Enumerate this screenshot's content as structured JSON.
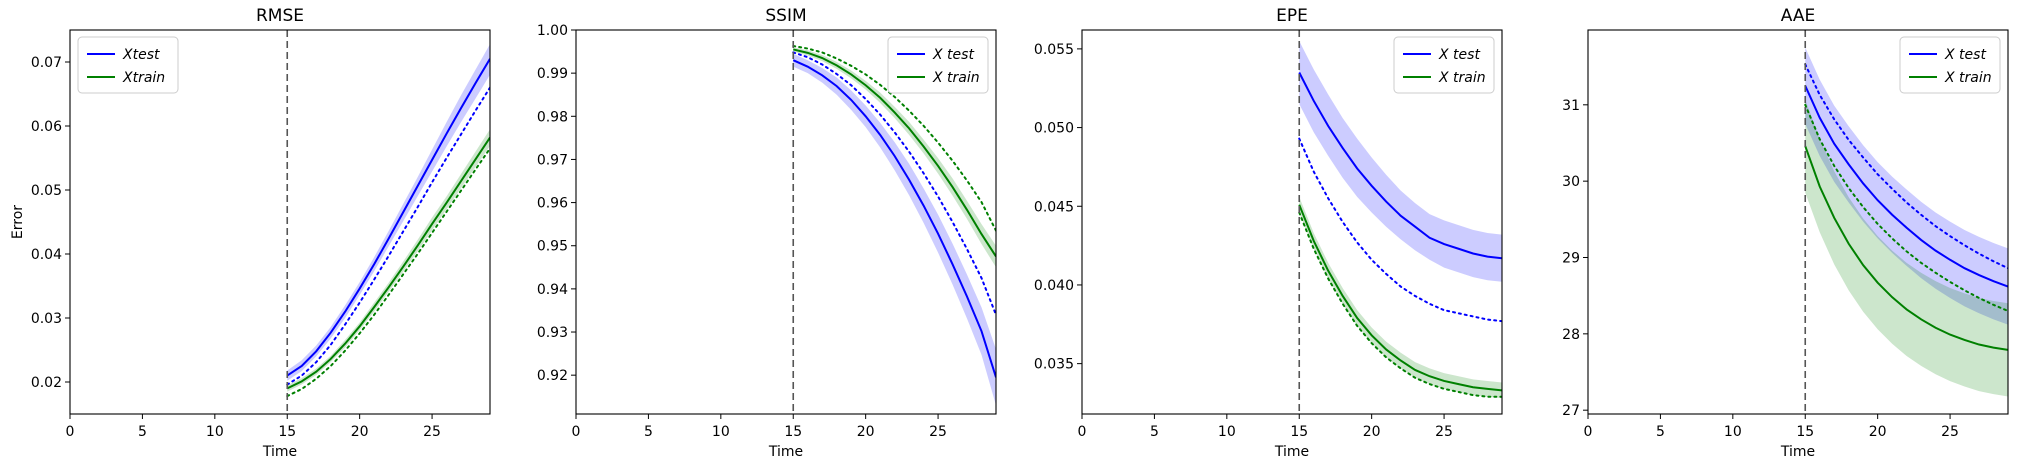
{
  "chart_data": [
    {
      "type": "line",
      "title": "RMSE",
      "xlabel": "Time",
      "ylabel": "Error",
      "xlim": [
        0,
        29
      ],
      "ylim": [
        0.015,
        0.075
      ],
      "xticks": [
        0,
        5,
        10,
        15,
        20,
        25
      ],
      "yticks": [
        0.02,
        0.03,
        0.04,
        0.05,
        0.06,
        0.07
      ],
      "ytick_labels": [
        "0.02",
        "0.03",
        "0.04",
        "0.05",
        "0.06",
        "0.07"
      ],
      "vline_x": 15,
      "legend": {
        "position": "top-left",
        "entries": [
          {
            "label": "Xtest",
            "color": "#0000ff"
          },
          {
            "label": "Xtrain",
            "color": "#008000"
          }
        ]
      },
      "x": [
        15,
        16,
        17,
        18,
        19,
        20,
        21,
        22,
        23,
        24,
        25,
        26,
        27,
        28,
        29
      ],
      "series": [
        {
          "name": "Xtest",
          "color": "#0000ff",
          "mean": [
            0.021,
            0.0225,
            0.0248,
            0.0277,
            0.031,
            0.0346,
            0.0384,
            0.0424,
            0.0465,
            0.0506,
            0.0547,
            0.0588,
            0.0628,
            0.0667,
            0.0705
          ],
          "lower": [
            0.0202,
            0.0217,
            0.024,
            0.0268,
            0.03,
            0.0336,
            0.0373,
            0.0412,
            0.0451,
            0.049,
            0.0529,
            0.0568,
            0.0606,
            0.0643,
            0.068
          ],
          "upper": [
            0.0218,
            0.0234,
            0.0257,
            0.0286,
            0.032,
            0.0356,
            0.0395,
            0.0436,
            0.0478,
            0.052,
            0.0563,
            0.0606,
            0.0648,
            0.0688,
            0.0728
          ],
          "dotted": [
            0.0196,
            0.021,
            0.0231,
            0.0258,
            0.029,
            0.0324,
            0.036,
            0.0397,
            0.0435,
            0.0473,
            0.0512,
            0.055,
            0.0587,
            0.0624,
            0.066
          ]
        },
        {
          "name": "Xtrain",
          "color": "#008000",
          "mean": [
            0.019,
            0.0201,
            0.0216,
            0.0236,
            0.026,
            0.0287,
            0.0317,
            0.0348,
            0.038,
            0.0413,
            0.0447,
            0.048,
            0.0514,
            0.0548,
            0.0582
          ],
          "lower": [
            0.0185,
            0.0196,
            0.0211,
            0.0231,
            0.0254,
            0.0281,
            0.031,
            0.0341,
            0.0372,
            0.0404,
            0.0437,
            0.047,
            0.0503,
            0.0536,
            0.0569
          ],
          "upper": [
            0.0195,
            0.0206,
            0.0221,
            0.0241,
            0.0266,
            0.0293,
            0.0324,
            0.0355,
            0.0388,
            0.0422,
            0.0457,
            0.049,
            0.0525,
            0.056,
            0.0595
          ],
          "dotted": [
            0.0178,
            0.0189,
            0.0205,
            0.0225,
            0.0249,
            0.0276,
            0.0305,
            0.0336,
            0.0368,
            0.04,
            0.0433,
            0.0466,
            0.0499,
            0.0532,
            0.0565
          ]
        }
      ]
    },
    {
      "type": "line",
      "title": "SSIM",
      "xlabel": "Time",
      "ylabel": "",
      "xlim": [
        0,
        29
      ],
      "ylim": [
        0.911,
        1.0
      ],
      "xticks": [
        0,
        5,
        10,
        15,
        20,
        25
      ],
      "yticks": [
        0.92,
        0.93,
        0.94,
        0.95,
        0.96,
        0.97,
        0.98,
        0.99,
        1.0
      ],
      "ytick_labels": [
        "0.92",
        "0.93",
        "0.94",
        "0.95",
        "0.96",
        "0.97",
        "0.98",
        "0.99",
        "1.00"
      ],
      "vline_x": 15,
      "legend": {
        "position": "top-right",
        "entries": [
          {
            "label": "X test",
            "color": "#0000ff"
          },
          {
            "label": "X train",
            "color": "#008000"
          }
        ]
      },
      "x": [
        15,
        16,
        17,
        18,
        19,
        20,
        21,
        22,
        23,
        24,
        25,
        26,
        27,
        28,
        29
      ],
      "series": [
        {
          "name": "X test",
          "color": "#0000ff",
          "mean": [
            0.993,
            0.9915,
            0.9895,
            0.987,
            0.9838,
            0.98,
            0.9757,
            0.9708,
            0.9653,
            0.9593,
            0.9528,
            0.9457,
            0.9382,
            0.9302,
            0.9195
          ],
          "lower": [
            0.9915,
            0.99,
            0.9878,
            0.985,
            0.9815,
            0.9775,
            0.9728,
            0.9675,
            0.9617,
            0.9553,
            0.9484,
            0.941,
            0.9331,
            0.9247,
            0.913
          ],
          "upper": [
            0.9945,
            0.993,
            0.9912,
            0.989,
            0.986,
            0.9825,
            0.9785,
            0.974,
            0.969,
            0.9633,
            0.9572,
            0.9505,
            0.9433,
            0.9357,
            0.926
          ],
          "dotted": [
            0.9948,
            0.9937,
            0.992,
            0.9898,
            0.9872,
            0.984,
            0.9804,
            0.9763,
            0.9718,
            0.9668,
            0.9614,
            0.9555,
            0.9492,
            0.9425,
            0.934
          ]
        },
        {
          "name": "X train",
          "color": "#008000",
          "mean": [
            0.9955,
            0.9947,
            0.9935,
            0.9918,
            0.9897,
            0.9872,
            0.9843,
            0.9809,
            0.9772,
            0.973,
            0.9685,
            0.9636,
            0.9583,
            0.9527,
            0.9475
          ],
          "lower": [
            0.995,
            0.9941,
            0.9928,
            0.991,
            0.9888,
            0.9862,
            0.9831,
            0.9796,
            0.9757,
            0.9714,
            0.9667,
            0.9616,
            0.9562,
            0.9504,
            0.945
          ],
          "upper": [
            0.996,
            0.9953,
            0.9942,
            0.9926,
            0.9906,
            0.9882,
            0.9855,
            0.9822,
            0.9787,
            0.9746,
            0.9703,
            0.9656,
            0.9604,
            0.955,
            0.95
          ],
          "dotted": [
            0.9963,
            0.9957,
            0.9948,
            0.9934,
            0.9917,
            0.9897,
            0.9873,
            0.9845,
            0.9813,
            0.9778,
            0.9739,
            0.9697,
            0.9651,
            0.9601,
            0.9535
          ]
        }
      ]
    },
    {
      "type": "line",
      "title": "EPE",
      "xlabel": "Time",
      "ylabel": "",
      "xlim": [
        0,
        29
      ],
      "ylim": [
        0.0318,
        0.0562
      ],
      "xticks": [
        0,
        5,
        10,
        15,
        20,
        25
      ],
      "yticks": [
        0.035,
        0.04,
        0.045,
        0.05,
        0.055
      ],
      "ytick_labels": [
        "0.035",
        "0.040",
        "0.045",
        "0.050",
        "0.055"
      ],
      "vline_x": 15,
      "legend": {
        "position": "top-right",
        "entries": [
          {
            "label": "X test",
            "color": "#0000ff"
          },
          {
            "label": "X train",
            "color": "#008000"
          }
        ]
      },
      "x": [
        15,
        16,
        17,
        18,
        19,
        20,
        21,
        22,
        23,
        24,
        25,
        26,
        27,
        28,
        29
      ],
      "series": [
        {
          "name": "X test",
          "color": "#0000ff",
          "mean": [
            0.0535,
            0.0517,
            0.0501,
            0.0487,
            0.0474,
            0.0463,
            0.0453,
            0.0444,
            0.0437,
            0.043,
            0.0426,
            0.0423,
            0.042,
            0.0418,
            0.0417
          ],
          "lower": [
            0.0515,
            0.0497,
            0.0482,
            0.0468,
            0.0456,
            0.0446,
            0.0437,
            0.0429,
            0.0422,
            0.0416,
            0.0411,
            0.0408,
            0.0405,
            0.0403,
            0.0402
          ],
          "upper": [
            0.0555,
            0.0537,
            0.0521,
            0.0506,
            0.0493,
            0.0481,
            0.047,
            0.046,
            0.0452,
            0.0445,
            0.0441,
            0.0438,
            0.0435,
            0.0433,
            0.0432
          ],
          "dotted": [
            0.0493,
            0.0472,
            0.0455,
            0.044,
            0.0427,
            0.0416,
            0.0407,
            0.0399,
            0.0393,
            0.0388,
            0.0384,
            0.0382,
            0.038,
            0.0378,
            0.0377
          ]
        },
        {
          "name": "X train",
          "color": "#008000",
          "mean": [
            0.0451,
            0.0428,
            0.0409,
            0.0393,
            0.0379,
            0.0368,
            0.0359,
            0.0352,
            0.0346,
            0.0342,
            0.0339,
            0.0337,
            0.0335,
            0.0334,
            0.0333
          ],
          "lower": [
            0.0446,
            0.0423,
            0.0404,
            0.0388,
            0.0374,
            0.0363,
            0.0354,
            0.0347,
            0.0341,
            0.0337,
            0.0334,
            0.0332,
            0.033,
            0.0329,
            0.0328
          ],
          "upper": [
            0.0456,
            0.0433,
            0.0414,
            0.0398,
            0.0384,
            0.0373,
            0.0364,
            0.0357,
            0.0351,
            0.0347,
            0.0344,
            0.0342,
            0.034,
            0.0339,
            0.0338
          ],
          "dotted": [
            0.0446,
            0.0423,
            0.0404,
            0.0388,
            0.0374,
            0.0363,
            0.0354,
            0.0347,
            0.0341,
            0.0337,
            0.0334,
            0.0332,
            0.033,
            0.0329,
            0.0329
          ]
        }
      ]
    },
    {
      "type": "line",
      "title": "AAE",
      "xlabel": "Time",
      "ylabel": "",
      "xlim": [
        0,
        29
      ],
      "ylim": [
        26.95,
        31.98
      ],
      "xticks": [
        0,
        5,
        10,
        15,
        20,
        25
      ],
      "yticks": [
        27,
        28,
        29,
        30,
        31
      ],
      "ytick_labels": [
        "27",
        "28",
        "29",
        "30",
        "31"
      ],
      "vline_x": 15,
      "legend": {
        "position": "top-right",
        "entries": [
          {
            "label": "X test",
            "color": "#0000ff"
          },
          {
            "label": "X train",
            "color": "#008000"
          }
        ]
      },
      "x": [
        15,
        16,
        17,
        18,
        19,
        20,
        21,
        22,
        23,
        24,
        25,
        26,
        27,
        28,
        29
      ],
      "series": [
        {
          "name": "X test",
          "color": "#0000ff",
          "mean": [
            31.25,
            30.83,
            30.49,
            30.22,
            29.97,
            29.75,
            29.56,
            29.39,
            29.23,
            29.09,
            28.97,
            28.86,
            28.77,
            28.69,
            28.62
          ],
          "lower": [
            30.75,
            30.33,
            29.99,
            29.72,
            29.47,
            29.25,
            29.06,
            28.89,
            28.73,
            28.59,
            28.47,
            28.36,
            28.27,
            28.19,
            28.12
          ],
          "upper": [
            31.75,
            31.33,
            30.99,
            30.72,
            30.47,
            30.25,
            30.06,
            29.89,
            29.73,
            29.59,
            29.47,
            29.36,
            29.27,
            29.19,
            29.12
          ],
          "dotted": [
            31.53,
            31.13,
            30.81,
            30.54,
            30.31,
            30.09,
            29.9,
            29.72,
            29.56,
            29.41,
            29.28,
            29.16,
            29.05,
            28.95,
            28.86
          ]
        },
        {
          "name": "X train",
          "color": "#008000",
          "mean": [
            30.46,
            29.93,
            29.52,
            29.18,
            28.9,
            28.67,
            28.48,
            28.32,
            28.19,
            28.08,
            27.99,
            27.92,
            27.86,
            27.82,
            27.79
          ],
          "lower": [
            29.85,
            29.33,
            28.91,
            28.57,
            28.29,
            28.06,
            27.87,
            27.71,
            27.58,
            27.47,
            27.38,
            27.31,
            27.25,
            27.21,
            27.18
          ],
          "upper": [
            31.07,
            30.55,
            30.13,
            29.79,
            29.51,
            29.28,
            29.09,
            28.93,
            28.8,
            28.69,
            28.6,
            28.53,
            28.47,
            28.43,
            28.4
          ],
          "dotted": [
            31.0,
            30.55,
            30.2,
            29.91,
            29.66,
            29.44,
            29.25,
            29.08,
            28.93,
            28.8,
            28.68,
            28.57,
            28.47,
            28.38,
            28.3
          ]
        }
      ]
    }
  ]
}
